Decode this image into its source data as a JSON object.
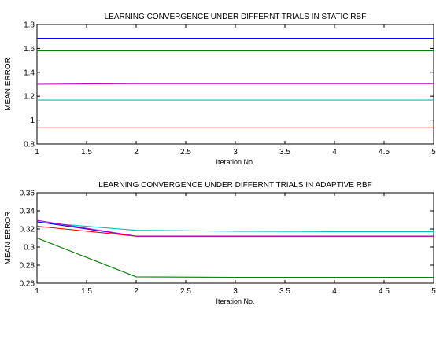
{
  "chart_data": [
    {
      "type": "line",
      "title": "LEARNING CONVERGENCE UNDER DIFFERNT TRIALS IN STATIC RBF",
      "xlabel": "Iteration No.",
      "ylabel": "MEAN ERROR",
      "xlim": [
        1,
        5
      ],
      "ylim": [
        0.8,
        1.8
      ],
      "xticks": [
        "1",
        "1.5",
        "2",
        "2.5",
        "3",
        "3.5",
        "4",
        "4.5",
        "5"
      ],
      "yticks": [
        "0.8",
        "1",
        "1.2",
        "1.4",
        "1.6",
        "1.8"
      ],
      "grid": false,
      "x": [
        1,
        2,
        3,
        4,
        5
      ],
      "series": [
        {
          "color": "#0000ff",
          "values": [
            1.685,
            1.685,
            1.685,
            1.685,
            1.685
          ]
        },
        {
          "color": "#008000",
          "values": [
            1.58,
            1.58,
            1.58,
            1.58,
            1.58
          ]
        },
        {
          "color": "#bf00bf",
          "values": [
            1.3,
            1.305,
            1.305,
            1.305,
            1.305
          ]
        },
        {
          "color": "#00bfbf",
          "values": [
            1.168,
            1.168,
            1.168,
            1.168,
            1.168
          ]
        },
        {
          "color": "#ff0000",
          "values": [
            0.94,
            0.94,
            0.94,
            0.94,
            0.94
          ]
        }
      ]
    },
    {
      "type": "line",
      "title": "LEARNING CONVERGENCE UNDER DIFFERNT TRIALS IN ADAPTIVE RBF",
      "xlabel": "Iteration No.",
      "ylabel": "MEAN ERROR",
      "xlim": [
        1,
        5
      ],
      "ylim": [
        0.26,
        0.36
      ],
      "xticks": [
        "1",
        "1.5",
        "2",
        "2.5",
        "3",
        "3.5",
        "4",
        "4.5",
        "5"
      ],
      "yticks": [
        "0.26",
        "0.28",
        "0.3",
        "0.32",
        "0.34",
        "0.36"
      ],
      "grid": false,
      "x": [
        1,
        2,
        3,
        4,
        5
      ],
      "series": [
        {
          "color": "#00bfbf",
          "values": [
            0.3275,
            0.3185,
            0.3175,
            0.317,
            0.317
          ]
        },
        {
          "color": "#0000ff",
          "values": [
            0.328,
            0.312,
            0.312,
            0.312,
            0.312
          ]
        },
        {
          "color": "#ff0000",
          "values": [
            0.323,
            0.312,
            0.312,
            0.312,
            0.312
          ]
        },
        {
          "color": "#bf00bf",
          "values": [
            0.3295,
            0.312,
            0.312,
            0.312,
            0.312
          ]
        },
        {
          "color": "#008000",
          "values": [
            0.31,
            0.267,
            0.2665,
            0.2665,
            0.2665
          ]
        }
      ]
    }
  ]
}
